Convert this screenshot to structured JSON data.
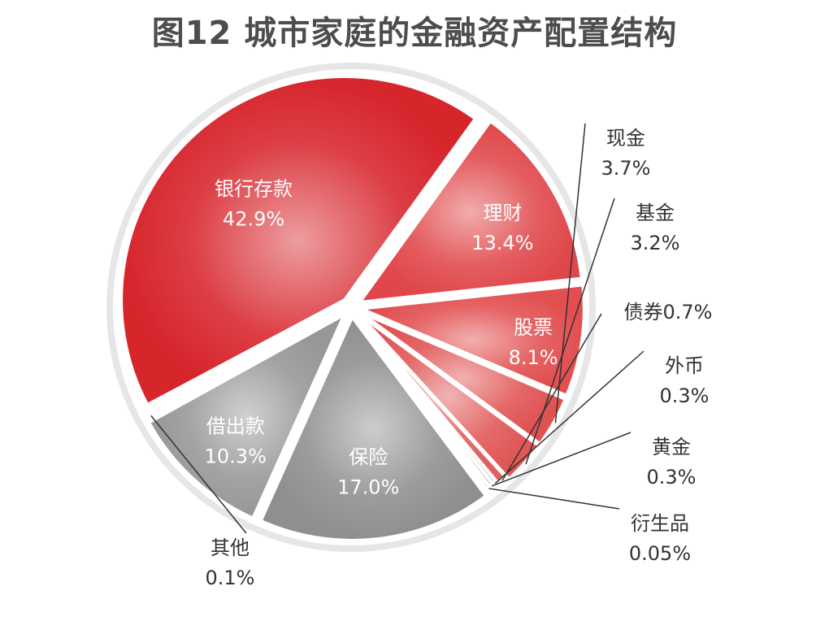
{
  "chart_data": {
    "type": "pie",
    "title": "图12 城市家庭的金融资产配置结构",
    "slices": [
      {
        "name": "银行存款",
        "label": "42.9%",
        "value": 42.9,
        "color": "#d7252c",
        "explode": 12
      },
      {
        "name": "理财",
        "label": "13.4%",
        "value": 13.4,
        "color": "#e0474a",
        "explode": 12
      },
      {
        "name": "股票",
        "label": "8.1%",
        "value": 8.1,
        "color": "#e24f50",
        "explode": 12
      },
      {
        "name": "现金",
        "label": "3.7%",
        "value": 3.7,
        "color": "#e05252",
        "explode": 12
      },
      {
        "name": "基金",
        "label": "3.2%",
        "value": 3.2,
        "color": "#e05757",
        "explode": 12
      },
      {
        "name": "债券",
        "label": "0.7%",
        "value": 0.7,
        "color": "#e06060",
        "explode": 6
      },
      {
        "name": "外币",
        "label": "0.3%",
        "value": 0.3,
        "color": "#c9c9c9",
        "explode": 3
      },
      {
        "name": "黄金",
        "label": "0.3%",
        "value": 0.3,
        "color": "#bdbdbd",
        "explode": 3
      },
      {
        "name": "衍生品",
        "label": "0.05%",
        "value": 0.05,
        "color": "#b0b0b0",
        "explode": 3
      },
      {
        "name": "保险",
        "label": "17.0%",
        "value": 17.0,
        "color": "#8f8f8f",
        "explode": 12
      },
      {
        "name": "借出款",
        "label": "10.3%",
        "value": 10.3,
        "color": "#979797",
        "explode": 12
      },
      {
        "name": "其他",
        "label": "0.1%",
        "value": 0.1,
        "color": "#b8b8b8",
        "explode": 3
      }
    ]
  }
}
